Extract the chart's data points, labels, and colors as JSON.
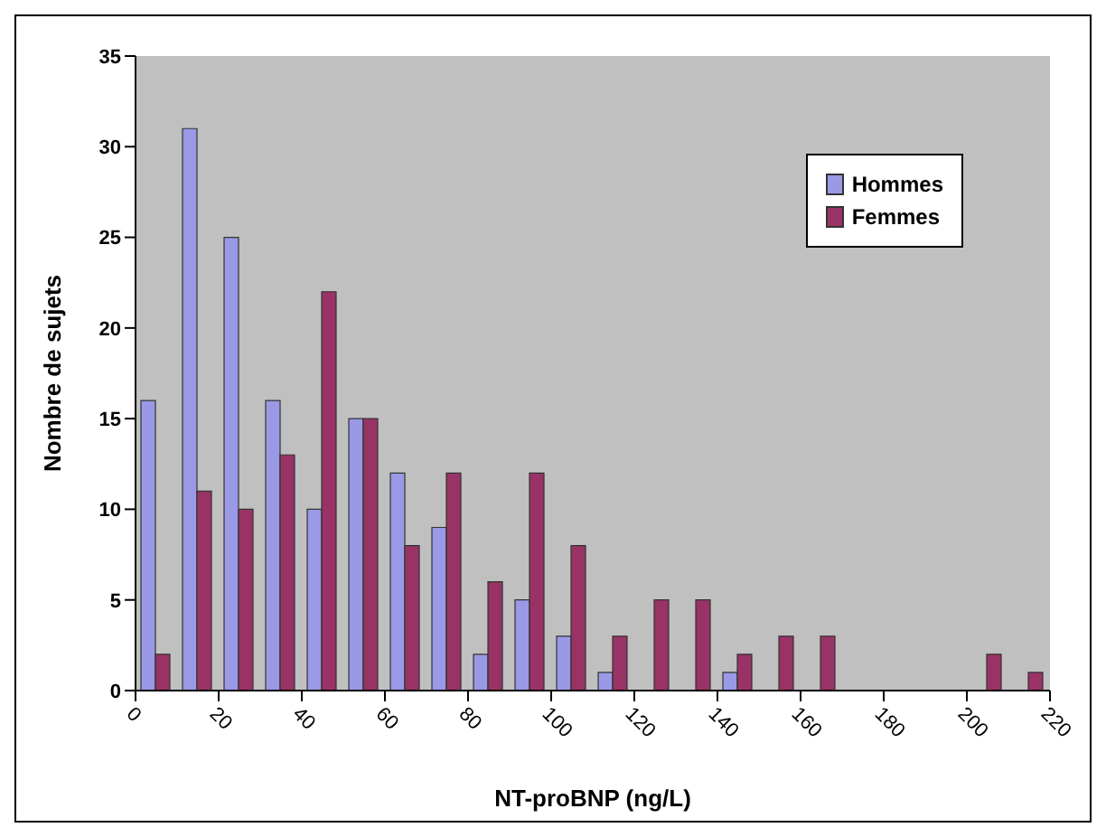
{
  "chart_data": {
    "type": "histogram",
    "xlabel": "NT-proBNP (ng/L)",
    "ylabel": "Nombre de sujets",
    "bins": [
      0,
      10,
      20,
      30,
      40,
      50,
      60,
      70,
      80,
      90,
      100,
      110,
      120,
      130,
      140,
      150,
      160,
      170,
      180,
      190,
      200,
      210,
      220
    ],
    "series": [
      {
        "name": "Hommes",
        "color": "#9999e6",
        "values": [
          16,
          31,
          25,
          16,
          10,
          15,
          12,
          9,
          2,
          5,
          3,
          1,
          0,
          0,
          1,
          0,
          0,
          0,
          0,
          0,
          0,
          0
        ]
      },
      {
        "name": "Femmes",
        "color": "#993366",
        "values": [
          2,
          11,
          10,
          13,
          22,
          15,
          8,
          12,
          6,
          12,
          8,
          3,
          5,
          5,
          2,
          3,
          3,
          0,
          0,
          0,
          2,
          1
        ]
      }
    ],
    "xlim": [
      0,
      220
    ],
    "xticks": [
      0,
      20,
      40,
      60,
      80,
      100,
      120,
      140,
      160,
      180,
      200,
      220
    ],
    "ylim": [
      0,
      35
    ],
    "yticks": [
      0,
      5,
      10,
      15,
      20,
      25,
      30,
      35
    ],
    "grid": false,
    "legend": "top right"
  }
}
